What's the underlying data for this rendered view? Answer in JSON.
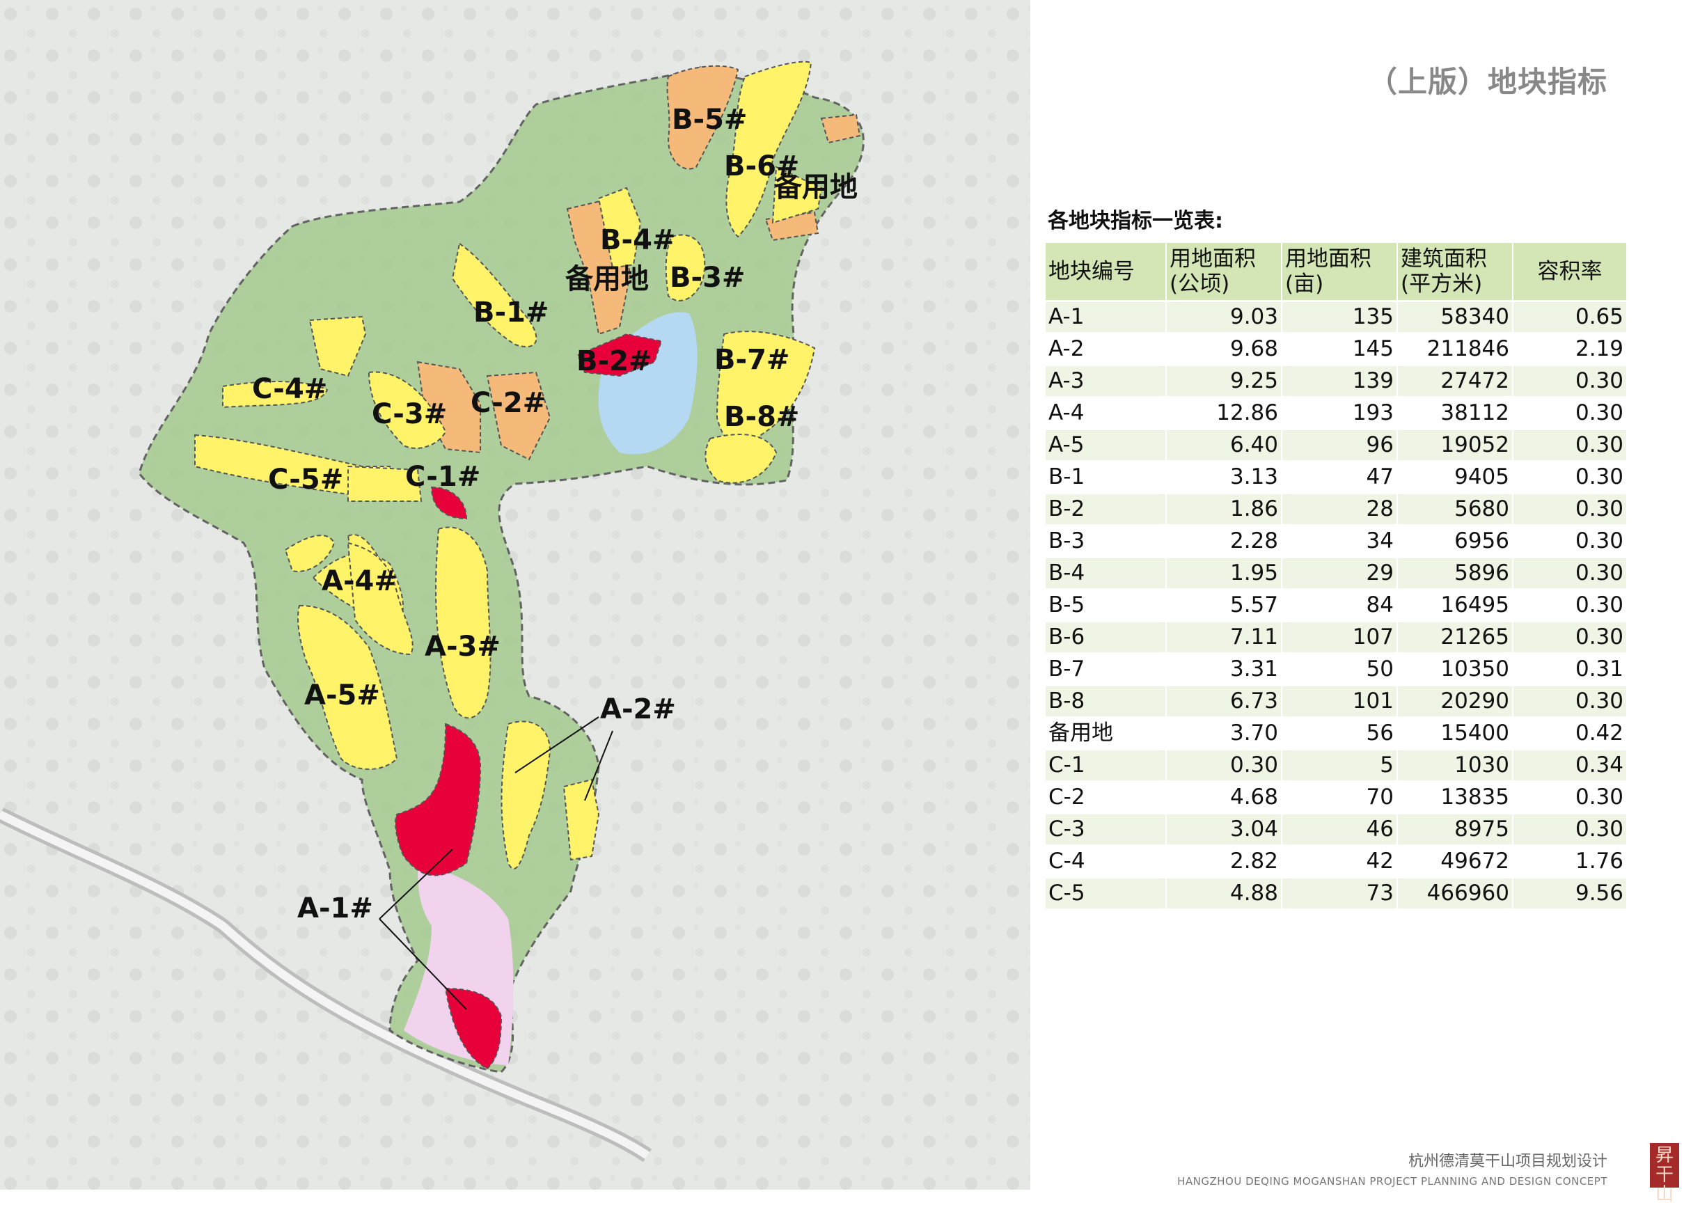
{
  "title": "（上版）地块指标",
  "table": {
    "title": "各地块指标一览表:",
    "headers": {
      "id": "地块编号",
      "area_ha_1": "用地面积",
      "area_ha_2": "(公顷)",
      "area_mu_1": "用地面积",
      "area_mu_2": "(亩)",
      "floor_1": "建筑面积",
      "floor_2": "(平方米)",
      "far": "容积率"
    },
    "rows": [
      {
        "id": "A-1",
        "area_ha": "9.03",
        "area_mu": "135",
        "floor": "58340",
        "far": "0.65"
      },
      {
        "id": "A-2",
        "area_ha": "9.68",
        "area_mu": "145",
        "floor": "211846",
        "far": "2.19"
      },
      {
        "id": "A-3",
        "area_ha": "9.25",
        "area_mu": "139",
        "floor": "27472",
        "far": "0.30"
      },
      {
        "id": "A-4",
        "area_ha": "12.86",
        "area_mu": "193",
        "floor": "38112",
        "far": "0.30"
      },
      {
        "id": "A-5",
        "area_ha": "6.40",
        "area_mu": "96",
        "floor": "19052",
        "far": "0.30"
      },
      {
        "id": "B-1",
        "area_ha": "3.13",
        "area_mu": "47",
        "floor": "9405",
        "far": "0.30"
      },
      {
        "id": "B-2",
        "area_ha": "1.86",
        "area_mu": "28",
        "floor": "5680",
        "far": "0.30"
      },
      {
        "id": "B-3",
        "area_ha": "2.28",
        "area_mu": "34",
        "floor": "6956",
        "far": "0.30"
      },
      {
        "id": "B-4",
        "area_ha": "1.95",
        "area_mu": "29",
        "floor": "5896",
        "far": "0.30"
      },
      {
        "id": "B-5",
        "area_ha": "5.57",
        "area_mu": "84",
        "floor": "16495",
        "far": "0.30"
      },
      {
        "id": "B-6",
        "area_ha": "7.11",
        "area_mu": "107",
        "floor": "21265",
        "far": "0.30"
      },
      {
        "id": "B-7",
        "area_ha": "3.31",
        "area_mu": "50",
        "floor": "10350",
        "far": "0.31"
      },
      {
        "id": "B-8",
        "area_ha": "6.73",
        "area_mu": "101",
        "floor": "20290",
        "far": "0.30"
      },
      {
        "id": "备用地",
        "area_ha": "3.70",
        "area_mu": "56",
        "floor": "15400",
        "far": "0.42"
      },
      {
        "id": "C-1",
        "area_ha": "0.30",
        "area_mu": "5",
        "floor": "1030",
        "far": "0.34"
      },
      {
        "id": "C-2",
        "area_ha": "4.68",
        "area_mu": "70",
        "floor": "13835",
        "far": "0.30"
      },
      {
        "id": "C-3",
        "area_ha": "3.04",
        "area_mu": "46",
        "floor": "8975",
        "far": "0.30"
      },
      {
        "id": "C-4",
        "area_ha": "2.82",
        "area_mu": "42",
        "floor": "49672",
        "far": "1.76"
      },
      {
        "id": "C-5",
        "area_ha": "4.88",
        "area_mu": "73",
        "floor": "466960",
        "far": "9.56"
      }
    ]
  },
  "map": {
    "labels": {
      "b5": "B-5#",
      "b6": "B-6#",
      "reserve1": "备用地",
      "b4": "B-4#",
      "reserve2": "备用地",
      "b3": "B-3#",
      "b1": "B-1#",
      "b2": "B-2#",
      "b7": "B-7#",
      "c4": "C-4#",
      "c3": "C-3#",
      "c2": "C-2#",
      "b8": "B-8#",
      "c5": "C-5#",
      "c1": "C-1#",
      "a4": "A-4#",
      "a3": "A-3#",
      "a2": "A-2#",
      "a5": "A-5#",
      "a1": "A-1#"
    },
    "colors": {
      "background": "#e6e8e6",
      "site": "#a8cc94",
      "residential": "#fff36a",
      "commercial": "#e8003a",
      "reserve": "#f5b97a",
      "water": "#b5d9f3",
      "park": "#f1d3ee",
      "outline": "#555555"
    }
  },
  "footer": {
    "cn": "杭州德清莫干山项目规划设计",
    "en": "HANGZHOU DEQING MOGANSHAN PROJECT PLANNING AND DESIGN CONCEPT",
    "seal": "昇干山"
  }
}
